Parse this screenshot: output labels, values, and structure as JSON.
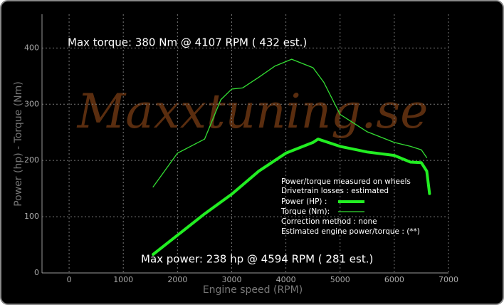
{
  "chart_data": {
    "type": "line",
    "watermark": "Maxxtuning.se",
    "xlabel": "Engine speed (RPM)",
    "ylabel": "Power (hp) - Torque (Nm)",
    "annotations": [
      "Max torque:  380 Nm @  4107 RPM ( 432 est.)",
      "Max power:   238 hp @  4594 RPM ( 281 est.)"
    ],
    "notes": [
      "Power/torque measured on wheels",
      "Drivetrain losses : estimated",
      "Correction method : none",
      "Estimated engine power/torque : (**)"
    ],
    "xlim": [
      -500,
      7000
    ],
    "xticks": [
      0,
      1000,
      2000,
      3000,
      4000,
      5000,
      6000,
      7000
    ],
    "ylim": [
      0,
      460
    ],
    "yticks": [
      0,
      100,
      200,
      300,
      400
    ],
    "grid": true,
    "series": [
      {
        "name": "Power (HP)  :",
        "color": "#22ee22",
        "width": 4,
        "x": [
          1550,
          2000,
          2500,
          3000,
          3500,
          4000,
          4500,
          4594,
          5000,
          5500,
          6000,
          6300,
          6500,
          6600,
          6650
        ],
        "values": [
          33,
          67,
          105,
          140,
          181,
          213,
          232,
          238,
          225,
          215,
          209,
          197,
          196,
          181,
          141
        ]
      },
      {
        "name": "Torque (Nm):",
        "color": "#33dd33",
        "width": 1.3,
        "x": [
          1550,
          2000,
          2500,
          2800,
          3000,
          3200,
          3500,
          3800,
          4107,
          4500,
          4700,
          5000,
          5500,
          6000,
          6300,
          6500,
          6600
        ],
        "values": [
          153,
          213,
          238,
          308,
          327,
          329,
          348,
          368,
          380,
          365,
          339,
          282,
          251,
          232,
          225,
          219,
          205
        ]
      }
    ]
  }
}
